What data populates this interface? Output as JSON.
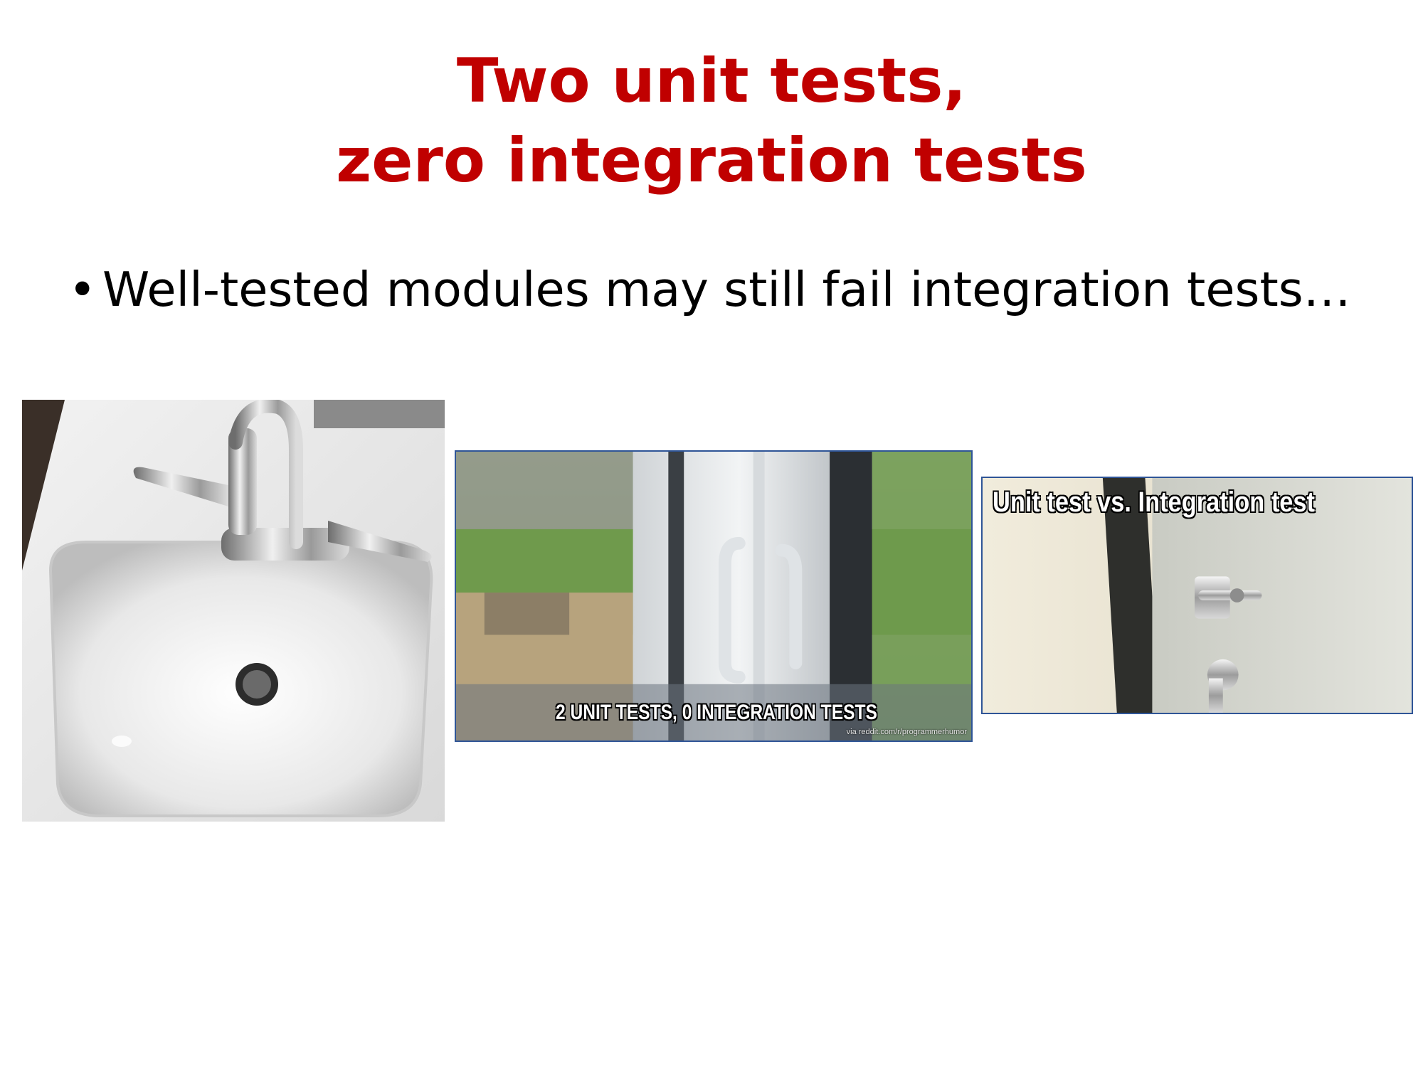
{
  "slide": {
    "title_lines": [
      "Two unit tests,",
      "zero integration tests"
    ],
    "bullets": [
      {
        "bullet": "•",
        "text": "Well-tested modules may still fail integration tests…"
      }
    ]
  },
  "images": {
    "sink": {
      "description_icon": "sink-photo"
    },
    "window": {
      "caption": "2 UNIT TESTS, 0 INTEGRATION TESTS",
      "source": "via reddit.com/r/programmerhumor"
    },
    "door": {
      "caption": "Unit test vs. Integration test"
    }
  },
  "colors": {
    "title": "#c00000",
    "text": "#000000",
    "image_border": "#2f5597"
  }
}
